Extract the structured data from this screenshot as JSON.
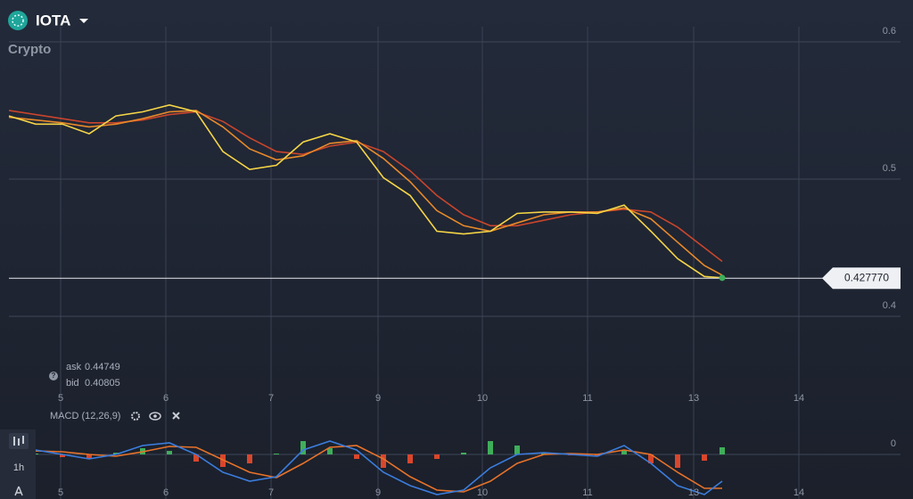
{
  "header": {
    "asset": "IOTA",
    "category": "Crypto"
  },
  "quote": {
    "ask_label": "ask",
    "ask": 0.44749,
    "bid_label": "bid",
    "bid": 0.40805
  },
  "sidebar": {
    "timeframe": "1h"
  },
  "chart_data": [
    {
      "type": "line",
      "x": [
        0,
        3,
        6,
        9,
        12,
        15,
        18,
        21,
        24,
        27,
        30,
        33,
        36,
        39,
        42,
        45,
        48,
        51,
        54,
        57,
        60,
        63,
        66,
        69,
        72,
        75,
        78,
        80
      ],
      "xlim": [
        0,
        100
      ],
      "xticks": [
        {
          "value": 5.8,
          "label": "5"
        },
        {
          "value": 17.6,
          "label": "6"
        },
        {
          "value": 29.4,
          "label": "7"
        },
        {
          "value": 41.4,
          "label": "9"
        },
        {
          "value": 53.1,
          "label": "10"
        },
        {
          "value": 64.9,
          "label": "11"
        },
        {
          "value": 76.8,
          "label": "13"
        },
        {
          "value": 88.6,
          "label": "14"
        }
      ],
      "ylim": [
        0.374,
        0.611
      ],
      "yticks": [
        0.4,
        0.5,
        0.6
      ],
      "grid": true,
      "current_price": {
        "value": 0.42777,
        "label": "0.427770"
      },
      "series": [
        {
          "color": "#f5d547",
          "values": [
            0.546,
            0.54,
            0.54,
            0.533,
            0.546,
            0.549,
            0.554,
            0.549,
            0.52,
            0.507,
            0.51,
            0.527,
            0.533,
            0.527,
            0.501,
            0.488,
            0.462,
            0.46,
            0.462,
            0.475,
            0.476,
            0.476,
            0.475,
            0.481,
            0.462,
            0.442,
            0.429,
            0.428
          ]
        },
        {
          "color": "#e8892a",
          "values": [
            0.545,
            0.543,
            0.541,
            0.538,
            0.54,
            0.544,
            0.549,
            0.55,
            0.538,
            0.522,
            0.514,
            0.517,
            0.526,
            0.528,
            0.515,
            0.498,
            0.477,
            0.466,
            0.462,
            0.468,
            0.474,
            0.476,
            0.476,
            0.479,
            0.471,
            0.454,
            0.437,
            0.43
          ]
        },
        {
          "color": "#c9452c",
          "values": [
            0.55,
            0.547,
            0.544,
            0.541,
            0.541,
            0.543,
            0.547,
            0.549,
            0.542,
            0.53,
            0.52,
            0.518,
            0.524,
            0.527,
            0.52,
            0.506,
            0.488,
            0.474,
            0.466,
            0.466,
            0.47,
            0.474,
            0.476,
            0.478,
            0.476,
            0.465,
            0.45,
            0.44
          ]
        }
      ]
    },
    {
      "type": "macd",
      "title": "MACD (12,26,9)",
      "x": [
        0,
        3,
        6,
        9,
        12,
        15,
        18,
        21,
        24,
        27,
        30,
        33,
        36,
        39,
        42,
        45,
        48,
        51,
        54,
        57,
        60,
        63,
        66,
        69,
        72,
        75,
        78,
        80
      ],
      "xlim": [
        0,
        100
      ],
      "ylim": [
        -0.005,
        0.0025
      ],
      "yticks": [
        0
      ],
      "histogram": {
        "up_color": "#3fae5a",
        "down_color": "#d9462c",
        "values": [
          0.0002,
          0.0001,
          -0.0003,
          -0.0005,
          0.0002,
          0.0007,
          0.0004,
          -0.0008,
          -0.0014,
          -0.001,
          0.0001,
          0.0015,
          0.0007,
          -0.0005,
          -0.0015,
          -0.001,
          -0.0005,
          0.0002,
          0.0015,
          0.001,
          0.0002,
          -0.0001,
          -0.0002,
          0.0005,
          -0.001,
          -0.0015,
          -0.0007,
          0.0008
        ]
      },
      "series": [
        {
          "color": "#3b7ddd",
          "values": [
            0.0005,
            0.0005,
            0,
            -0.0005,
            0,
            0.001,
            0.0013,
            0,
            -0.002,
            -0.003,
            -0.0025,
            0.0005,
            0.0015,
            0.0005,
            -0.002,
            -0.0035,
            -0.0045,
            -0.004,
            -0.0015,
            0,
            0.0002,
            0,
            -0.0002,
            0.001,
            -0.001,
            -0.0035,
            -0.0045,
            -0.003
          ]
        },
        {
          "color": "#e8722a",
          "values": [
            0.0003,
            0.0004,
            0.0003,
            0,
            -0.0002,
            0.0003,
            0.0009,
            0.0008,
            -0.0006,
            -0.002,
            -0.0026,
            -0.001,
            0.0008,
            0.001,
            -0.0005,
            -0.0025,
            -0.004,
            -0.0042,
            -0.003,
            -0.001,
            0,
            0.0001,
            0,
            0.0005,
            0,
            -0.002,
            -0.0038,
            -0.0038
          ]
        }
      ]
    }
  ]
}
